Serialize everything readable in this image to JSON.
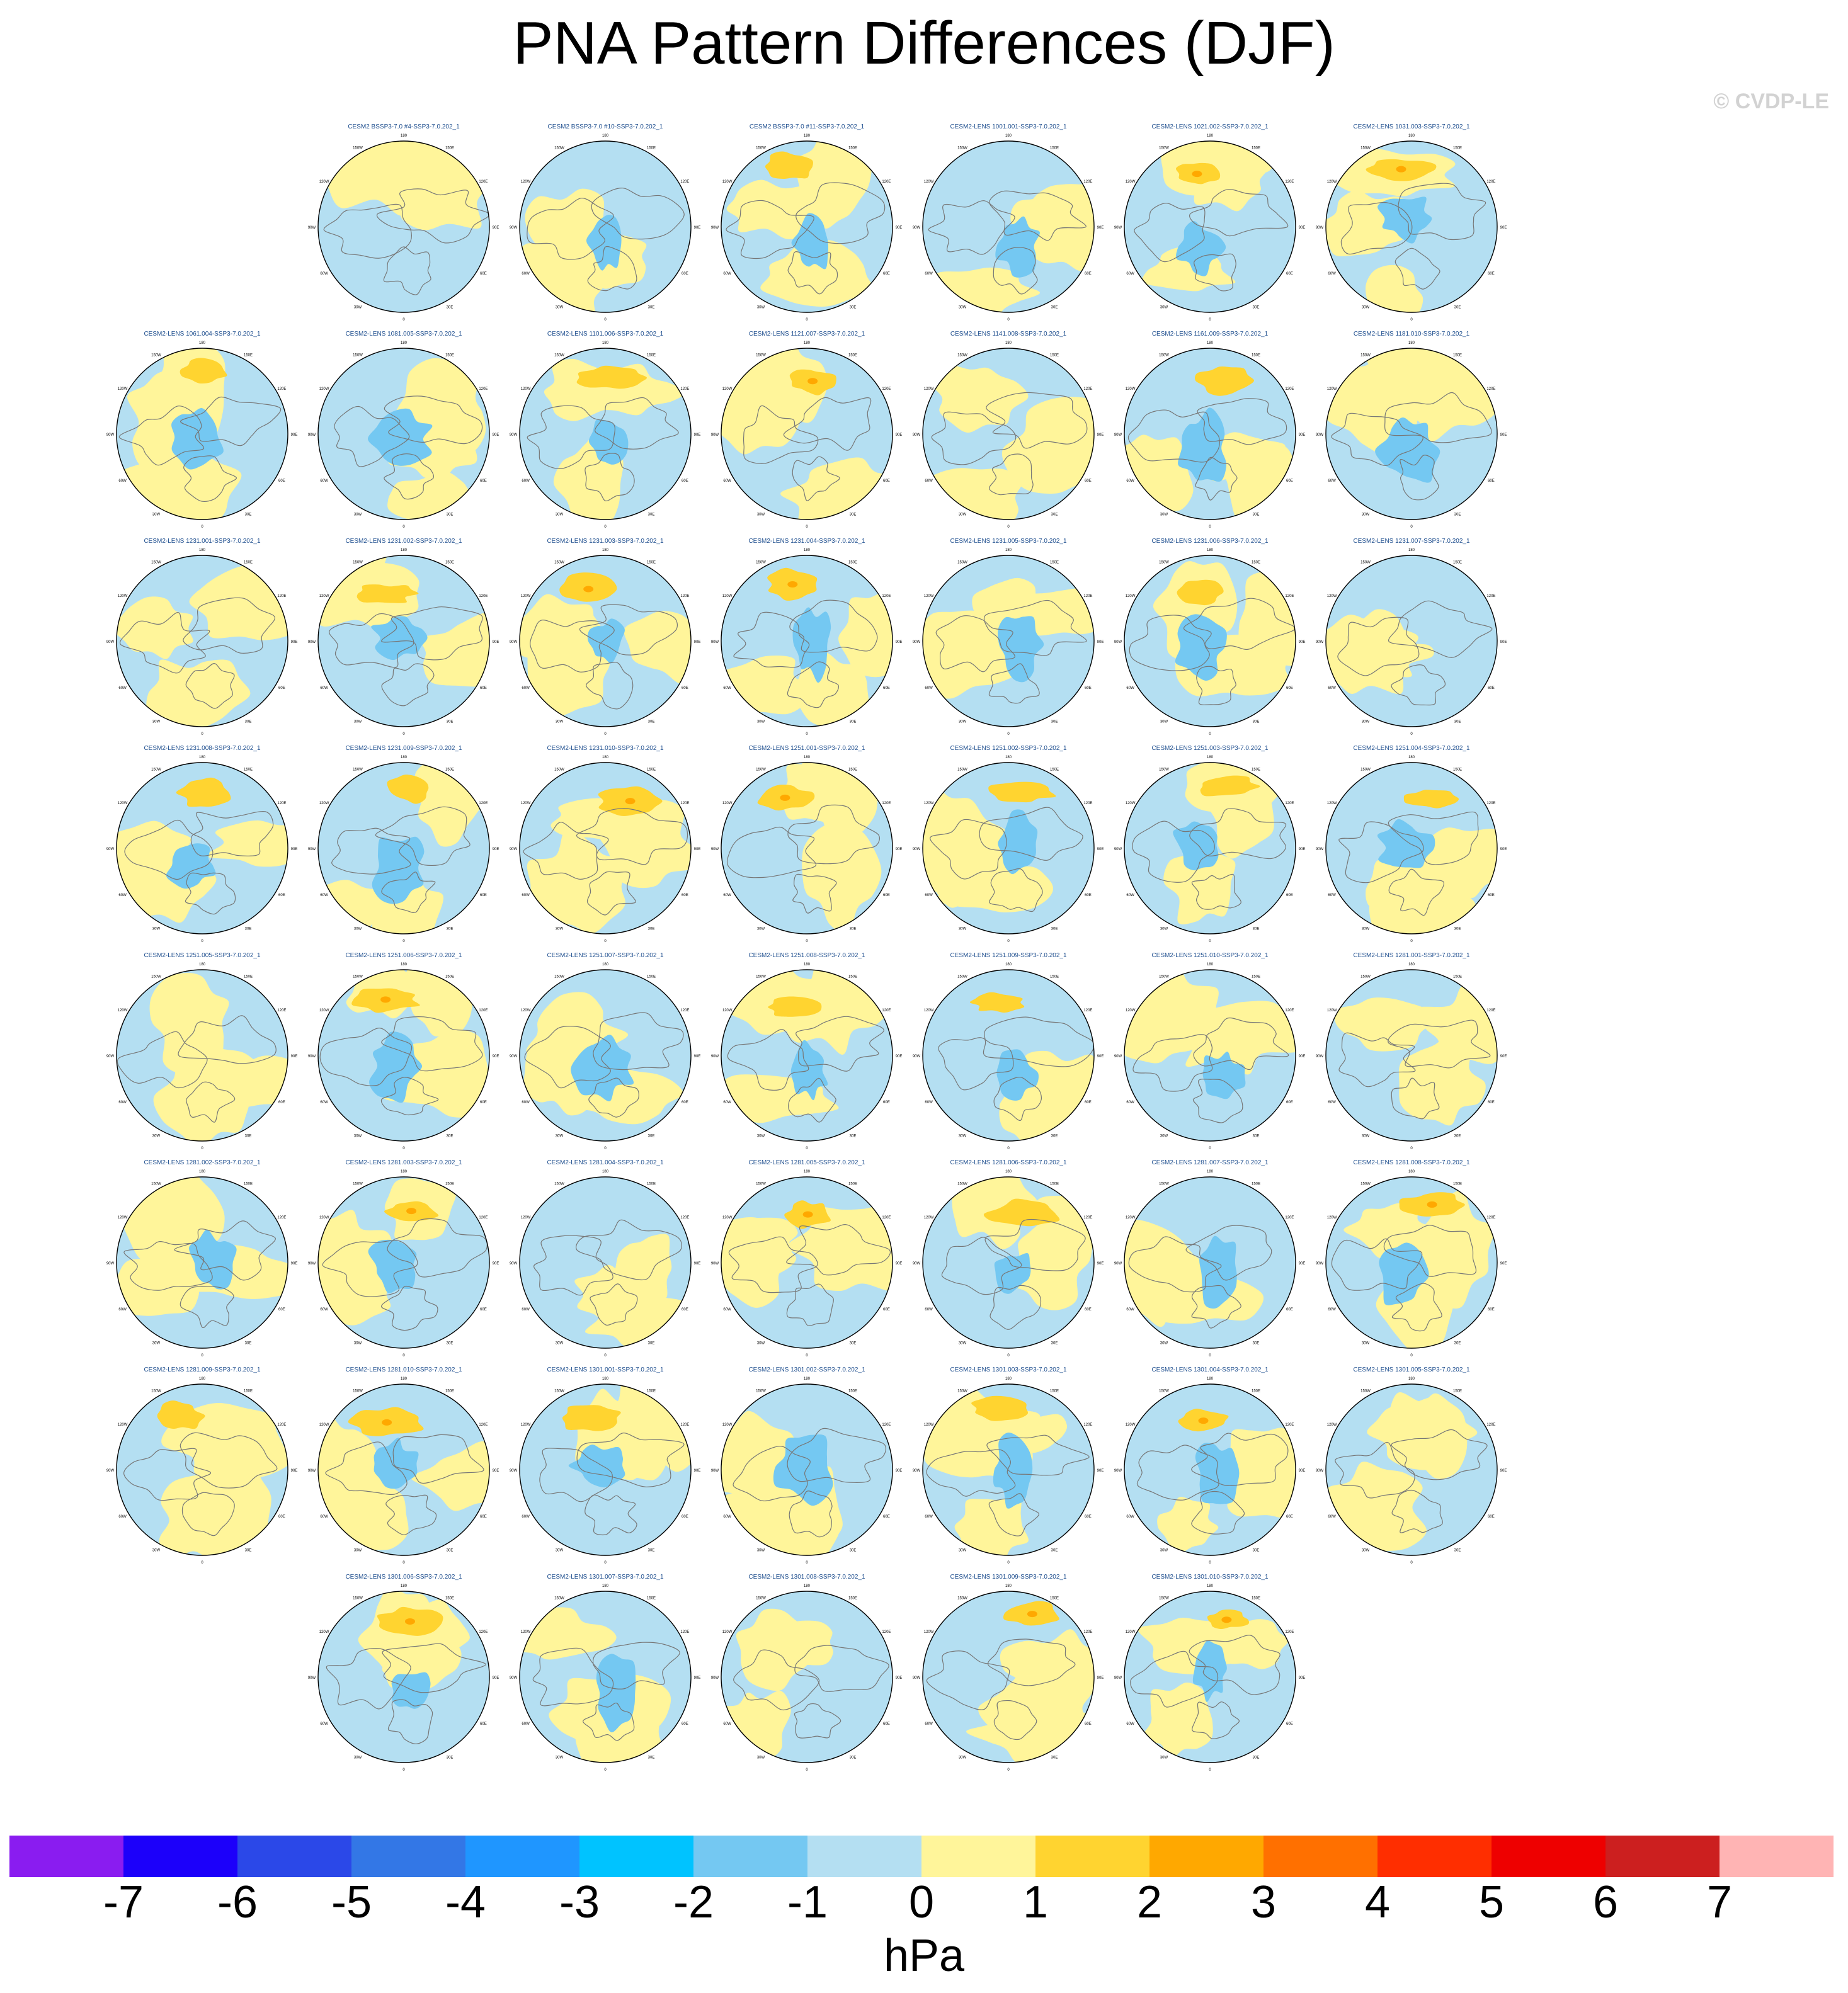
{
  "title": "PNA Pattern Differences (DJF)",
  "copyright": "© CVDP-LE",
  "map_lon_labels": {
    "top": "180",
    "upper_left": "150W",
    "upper_right": "150E",
    "left_high": "120W",
    "right_high": "120E",
    "left": "90W",
    "right": "90E",
    "left_low": "60W",
    "right_low": "60E",
    "lower_left": "30W",
    "lower_right": "30E",
    "bottom": "0"
  },
  "panels": [
    [
      "CESM2 BSSP3-7.0 #4-SSP3-7.0.202_1",
      "CESM2 BSSP3-7.0 #10-SSP3-7.0.202_1",
      "CESM2 BSSP3-7.0 #11-SSP3-7.0.202_1",
      "CESM2-LENS 1001.001-SSP3-7.0.202_1",
      "CESM2-LENS 1021.002-SSP3-7.0.202_1",
      "CESM2-LENS 1031.003-SSP3-7.0.202_1"
    ],
    [
      "CESM2-LENS 1061.004-SSP3-7.0.202_1",
      "CESM2-LENS 1081.005-SSP3-7.0.202_1",
      "CESM2-LENS 1101.006-SSP3-7.0.202_1",
      "CESM2-LENS 1121.007-SSP3-7.0.202_1",
      "CESM2-LENS 1141.008-SSP3-7.0.202_1",
      "CESM2-LENS 1161.009-SSP3-7.0.202_1",
      "CESM2-LENS 1181.010-SSP3-7.0.202_1"
    ],
    [
      "CESM2-LENS 1231.001-SSP3-7.0.202_1",
      "CESM2-LENS 1231.002-SSP3-7.0.202_1",
      "CESM2-LENS 1231.003-SSP3-7.0.202_1",
      "CESM2-LENS 1231.004-SSP3-7.0.202_1",
      "CESM2-LENS 1231.005-SSP3-7.0.202_1",
      "CESM2-LENS 1231.006-SSP3-7.0.202_1",
      "CESM2-LENS 1231.007-SSP3-7.0.202_1"
    ],
    [
      "CESM2-LENS 1231.008-SSP3-7.0.202_1",
      "CESM2-LENS 1231.009-SSP3-7.0.202_1",
      "CESM2-LENS 1231.010-SSP3-7.0.202_1",
      "CESM2-LENS 1251.001-SSP3-7.0.202_1",
      "CESM2-LENS 1251.002-SSP3-7.0.202_1",
      "CESM2-LENS 1251.003-SSP3-7.0.202_1",
      "CESM2-LENS 1251.004-SSP3-7.0.202_1"
    ],
    [
      "CESM2-LENS 1251.005-SSP3-7.0.202_1",
      "CESM2-LENS 1251.006-SSP3-7.0.202_1",
      "CESM2-LENS 1251.007-SSP3-7.0.202_1",
      "CESM2-LENS 1251.008-SSP3-7.0.202_1",
      "CESM2-LENS 1251.009-SSP3-7.0.202_1",
      "CESM2-LENS 1251.010-SSP3-7.0.202_1",
      "CESM2-LENS 1281.001-SSP3-7.0.202_1"
    ],
    [
      "CESM2-LENS 1281.002-SSP3-7.0.202_1",
      "CESM2-LENS 1281.003-SSP3-7.0.202_1",
      "CESM2-LENS 1281.004-SSP3-7.0.202_1",
      "CESM2-LENS 1281.005-SSP3-7.0.202_1",
      "CESM2-LENS 1281.006-SSP3-7.0.202_1",
      "CESM2-LENS 1281.007-SSP3-7.0.202_1",
      "CESM2-LENS 1281.008-SSP3-7.0.202_1"
    ],
    [
      "CESM2-LENS 1281.009-SSP3-7.0.202_1",
      "CESM2-LENS 1281.010-SSP3-7.0.202_1",
      "CESM2-LENS 1301.001-SSP3-7.0.202_1",
      "CESM2-LENS 1301.002-SSP3-7.0.202_1",
      "CESM2-LENS 1301.003-SSP3-7.0.202_1",
      "CESM2-LENS 1301.004-SSP3-7.0.202_1",
      "CESM2-LENS 1301.005-SSP3-7.0.202_1"
    ],
    [
      "CESM2-LENS 1301.006-SSP3-7.0.202_1",
      "CESM2-LENS 1301.007-SSP3-7.0.202_1",
      "CESM2-LENS 1301.008-SSP3-7.0.202_1",
      "CESM2-LENS 1301.009-SSP3-7.0.202_1",
      "CESM2-LENS 1301.010-SSP3-7.0.202_1"
    ]
  ],
  "colorbar": {
    "unit": "hPa",
    "colors": [
      "#8a1cf0",
      "#1c00fa",
      "#2b48e8",
      "#3377e6",
      "#1f96ff",
      "#00c3ff",
      "#74c8f2",
      "#b4dff2",
      "#fff59a",
      "#ffd430",
      "#ffa800",
      "#ff7000",
      "#ff2e00",
      "#ee0000",
      "#cc1f1f",
      "#ffb4b4"
    ],
    "tick_labels": [
      "-7",
      "-6",
      "-5",
      "-4",
      "-3",
      "-2",
      "-1",
      "0",
      "1",
      "2",
      "3",
      "4",
      "5",
      "6",
      "7"
    ]
  }
}
